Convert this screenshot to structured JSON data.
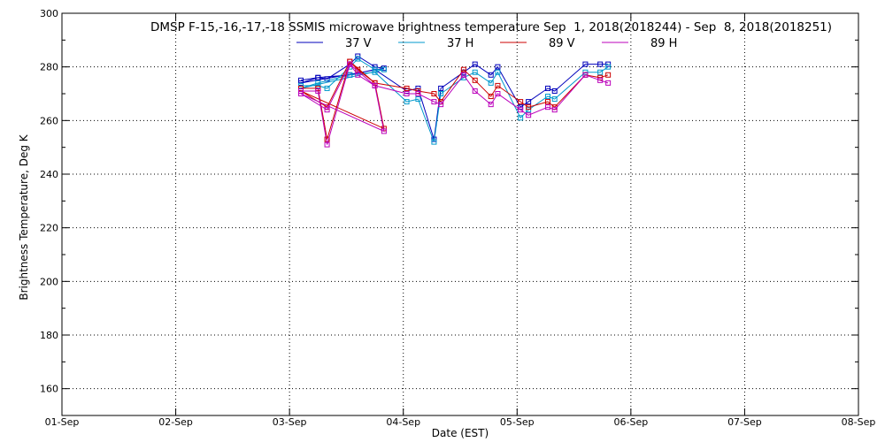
{
  "chart_data": {
    "type": "line",
    "title": "DMSP F-15,-16,-17,-18 SSMIS microwave brightness temperature Sep  1, 2018(2018244) - Sep  8, 2018(2018251)",
    "xlabel": "Date (EST)",
    "ylabel": "Brightness Temperature, Deg K",
    "xlim": [
      0,
      7
    ],
    "ylim": [
      150,
      300
    ],
    "yticks": [
      160,
      180,
      200,
      220,
      240,
      260,
      280,
      300
    ],
    "xtick_labels": [
      "01-Sep",
      "02-Sep",
      "03-Sep",
      "04-Sep",
      "05-Sep",
      "06-Sep",
      "07-Sep",
      "08-Sep"
    ],
    "grid": true,
    "legend_position": "top",
    "series": [
      {
        "name": "37 V",
        "color": "#0000bb",
        "points": [
          [
            2.1,
            275
          ],
          [
            2.25,
            276
          ],
          [
            2.33,
            275.5
          ],
          [
            2.53,
            281
          ],
          [
            2.6,
            284
          ],
          [
            2.75,
            280
          ],
          [
            2.83,
            279.5
          ],
          [
            2.1,
            274
          ],
          [
            2.25,
            276
          ],
          [
            2.53,
            277
          ],
          [
            2.75,
            279
          ],
          [
            3.03,
            271
          ],
          [
            3.13,
            272
          ],
          [
            3.27,
            253
          ],
          [
            3.33,
            272
          ],
          [
            3.53,
            278
          ],
          [
            3.63,
            281
          ],
          [
            3.77,
            277
          ],
          [
            3.83,
            280
          ],
          [
            4.03,
            265
          ],
          [
            4.1,
            267
          ],
          [
            4.27,
            272
          ],
          [
            4.33,
            271
          ],
          [
            4.6,
            281
          ],
          [
            4.73,
            281
          ],
          [
            4.8,
            281
          ]
        ]
      },
      {
        "name": "37 H",
        "color": "#0099cc",
        "points": [
          [
            2.1,
            273
          ],
          [
            2.25,
            273
          ],
          [
            2.33,
            272
          ],
          [
            2.53,
            280
          ],
          [
            2.6,
            283
          ],
          [
            2.75,
            279
          ],
          [
            2.83,
            279
          ],
          [
            2.1,
            272
          ],
          [
            2.25,
            274
          ],
          [
            2.53,
            277
          ],
          [
            2.75,
            278
          ],
          [
            3.03,
            267
          ],
          [
            3.13,
            268
          ],
          [
            3.27,
            252
          ],
          [
            3.33,
            270
          ],
          [
            3.53,
            276
          ],
          [
            3.63,
            278
          ],
          [
            3.77,
            274
          ],
          [
            3.83,
            278
          ],
          [
            4.03,
            261
          ],
          [
            4.1,
            264
          ],
          [
            4.27,
            269
          ],
          [
            4.33,
            268
          ],
          [
            4.6,
            278
          ],
          [
            4.73,
            278
          ],
          [
            4.8,
            280
          ]
        ]
      },
      {
        "name": "89 V",
        "color": "#cc0000",
        "points": [
          [
            2.1,
            272
          ],
          [
            2.25,
            272
          ],
          [
            2.33,
            253
          ],
          [
            2.53,
            282
          ],
          [
            2.6,
            279
          ],
          [
            2.75,
            274
          ],
          [
            2.83,
            257
          ],
          [
            2.1,
            271
          ],
          [
            2.33,
            265
          ],
          [
            2.53,
            282
          ],
          [
            2.75,
            274
          ],
          [
            3.03,
            272
          ],
          [
            3.13,
            271
          ],
          [
            3.27,
            270
          ],
          [
            3.33,
            267
          ],
          [
            3.53,
            279
          ],
          [
            3.63,
            275
          ],
          [
            3.77,
            269
          ],
          [
            3.83,
            273
          ],
          [
            4.03,
            267
          ],
          [
            4.1,
            265
          ],
          [
            4.27,
            267
          ],
          [
            4.33,
            265
          ],
          [
            4.6,
            277
          ],
          [
            4.73,
            276
          ],
          [
            4.8,
            277
          ]
        ]
      },
      {
        "name": "89 H",
        "color": "#bb00bb",
        "points": [
          [
            2.1,
            271
          ],
          [
            2.25,
            271
          ],
          [
            2.33,
            251
          ],
          [
            2.53,
            281
          ],
          [
            2.6,
            277
          ],
          [
            2.75,
            273
          ],
          [
            2.83,
            256
          ],
          [
            2.1,
            270
          ],
          [
            2.33,
            264
          ],
          [
            2.53,
            281
          ],
          [
            2.75,
            273
          ],
          [
            3.03,
            270
          ],
          [
            3.13,
            270
          ],
          [
            3.27,
            267
          ],
          [
            3.33,
            266
          ],
          [
            3.53,
            277
          ],
          [
            3.63,
            271
          ],
          [
            3.77,
            266
          ],
          [
            3.83,
            270
          ],
          [
            4.03,
            264
          ],
          [
            4.1,
            262
          ],
          [
            4.27,
            265
          ],
          [
            4.33,
            264
          ],
          [
            4.6,
            277
          ],
          [
            4.73,
            275
          ],
          [
            4.8,
            274
          ]
        ]
      }
    ]
  }
}
